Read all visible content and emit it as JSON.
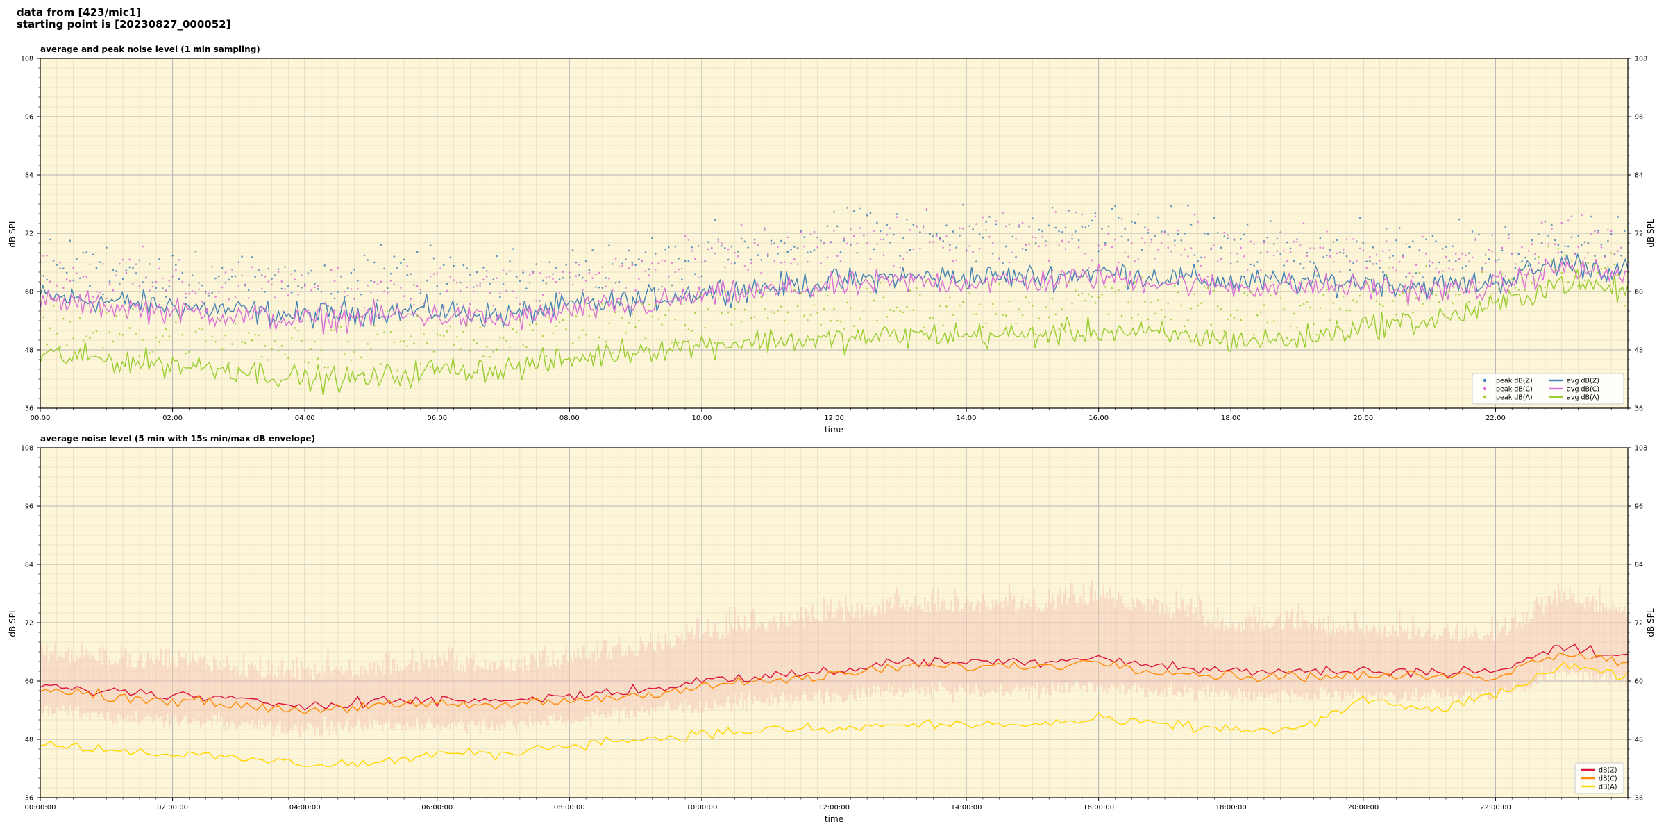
{
  "header": {
    "line1": "data from [423/mic1]",
    "line2": "starting point is [20230827_000052]"
  },
  "colors": {
    "background": "#fdf5d8",
    "z": "#4682b4",
    "c": "#da70d6",
    "a": "#9acd32",
    "z2": "#dc143c",
    "c2": "#ff8c00",
    "a2": "#ffd700",
    "envelope": "#f4c2b4"
  },
  "chart_data": [
    {
      "type": "line",
      "title": "average and peak noise level (1 min sampling)",
      "xlabel": "time",
      "ylabel": "dB SPL",
      "x_unit": "hours",
      "xlim": [
        0,
        24
      ],
      "ylim": [
        36,
        108
      ],
      "yticks": [
        36,
        48,
        60,
        72,
        84,
        96,
        108
      ],
      "xticks": [
        "00:00",
        "02:00",
        "04:00",
        "06:00",
        "08:00",
        "10:00",
        "12:00",
        "14:00",
        "16:00",
        "18:00",
        "20:00",
        "22:00"
      ],
      "grid": true,
      "legend_position": "bottom-right",
      "legend": [
        {
          "label": "peak dB(Z)",
          "kind": "marker",
          "color_key": "z"
        },
        {
          "label": "peak dB(C)",
          "kind": "marker",
          "color_key": "c"
        },
        {
          "label": "peak dB(A)",
          "kind": "marker",
          "color_key": "a"
        },
        {
          "label": "avg dB(Z)",
          "kind": "line",
          "color_key": "z"
        },
        {
          "label": "avg dB(C)",
          "kind": "line",
          "color_key": "c"
        },
        {
          "label": "avg dB(A)",
          "kind": "line",
          "color_key": "a"
        }
      ],
      "x": [
        0,
        1,
        2,
        3,
        4,
        5,
        6,
        7,
        8,
        9,
        10,
        11,
        12,
        13,
        14,
        15,
        16,
        17,
        18,
        19,
        20,
        21,
        22,
        23,
        24
      ],
      "series": [
        {
          "name": "avg dB(Z)",
          "kind": "line",
          "color_key": "z",
          "values": [
            59,
            58,
            57,
            56,
            55,
            56,
            56,
            55,
            57,
            58,
            60,
            61,
            62,
            63,
            63,
            63,
            64,
            63,
            62,
            62,
            62,
            61,
            62,
            66,
            64
          ]
        },
        {
          "name": "avg dB(C)",
          "kind": "line",
          "color_key": "c",
          "values": [
            58,
            57,
            56,
            55,
            54,
            55,
            55,
            54,
            56,
            57,
            59,
            60,
            61,
            62,
            62,
            62,
            63,
            62,
            61,
            61,
            61,
            60,
            61,
            65,
            63
          ]
        },
        {
          "name": "avg dB(A)",
          "kind": "line",
          "color_key": "a",
          "values": [
            47,
            46,
            45,
            44,
            42,
            42,
            44,
            44,
            46,
            48,
            49,
            50,
            50,
            51,
            51,
            51,
            52,
            51,
            50,
            50,
            53,
            54,
            57,
            62,
            60
          ]
        },
        {
          "name": "peak dB(Z)",
          "kind": "scatter",
          "color_key": "z",
          "values": [
            66,
            65,
            64,
            63,
            62,
            63,
            63,
            62,
            64,
            66,
            68,
            70,
            71,
            72,
            72,
            72,
            73,
            72,
            70,
            70,
            69,
            68,
            68,
            72,
            71
          ]
        },
        {
          "name": "peak dB(C)",
          "kind": "scatter",
          "color_key": "c",
          "values": [
            64,
            63,
            62,
            61,
            60,
            61,
            61,
            60,
            62,
            64,
            66,
            68,
            69,
            70,
            70,
            70,
            71,
            70,
            68,
            68,
            67,
            66,
            66,
            70,
            69
          ]
        },
        {
          "name": "peak dB(A)",
          "kind": "scatter",
          "color_key": "a",
          "values": [
            53,
            52,
            51,
            50,
            49,
            49,
            50,
            50,
            52,
            54,
            55,
            56,
            56,
            57,
            57,
            57,
            58,
            57,
            56,
            56,
            58,
            59,
            61,
            65,
            63
          ]
        }
      ]
    },
    {
      "type": "line",
      "title": "average noise level (5 min with 15s min/max dB envelope)",
      "xlabel": "time",
      "ylabel": "dB SPL",
      "x_unit": "hours",
      "xlim": [
        0,
        24
      ],
      "ylim": [
        36,
        108
      ],
      "yticks": [
        36,
        48,
        60,
        72,
        84,
        96,
        108
      ],
      "xticks": [
        "00:00:00",
        "02:00:00",
        "04:00:00",
        "06:00:00",
        "08:00:00",
        "10:00:00",
        "12:00:00",
        "14:00:00",
        "16:00:00",
        "18:00:00",
        "20:00:00",
        "22:00:00"
      ],
      "grid": true,
      "legend_position": "bottom-right",
      "legend": [
        {
          "label": "dB(Z)",
          "kind": "line",
          "color_key": "z2"
        },
        {
          "label": "dB(C)",
          "kind": "line",
          "color_key": "c2"
        },
        {
          "label": "dB(A)",
          "kind": "line",
          "color_key": "a2"
        }
      ],
      "x": [
        0,
        1,
        2,
        3,
        4,
        5,
        6,
        7,
        8,
        9,
        10,
        11,
        12,
        13,
        14,
        15,
        16,
        17,
        18,
        19,
        20,
        21,
        22,
        23,
        24
      ],
      "series": [
        {
          "name": "dB(Z)",
          "kind": "line",
          "color_key": "z2",
          "values": [
            59,
            58,
            57,
            56,
            55,
            56,
            56,
            56,
            57,
            58,
            60,
            61,
            62,
            64,
            64,
            64,
            65,
            63,
            62,
            62,
            62,
            62,
            62,
            67,
            65
          ]
        },
        {
          "name": "dB(C)",
          "kind": "line",
          "color_key": "c2",
          "values": [
            58,
            57,
            56,
            55,
            54,
            55,
            55,
            55,
            56,
            57,
            59,
            60,
            61,
            63,
            63,
            63,
            64,
            62,
            61,
            61,
            61,
            61,
            61,
            66,
            64
          ]
        },
        {
          "name": "dB(A)",
          "kind": "line",
          "color_key": "a2",
          "values": [
            47,
            46,
            45,
            44,
            43,
            43,
            45,
            45,
            47,
            48,
            49,
            50,
            50,
            51,
            51,
            51,
            52,
            51,
            50,
            50,
            56,
            54,
            57,
            63,
            61
          ]
        }
      ],
      "envelope": {
        "color_key": "envelope",
        "lower": [
          54,
          53,
          52,
          51,
          50,
          51,
          51,
          51,
          52,
          54,
          55,
          56,
          57,
          58,
          58,
          58,
          59,
          58,
          57,
          57,
          57,
          57,
          57,
          62,
          60
        ],
        "upper": [
          66,
          65,
          64,
          63,
          62,
          63,
          64,
          63,
          65,
          67,
          70,
          72,
          74,
          76,
          76,
          76,
          78,
          75,
          72,
          72,
          71,
          70,
          70,
          78,
          74
        ]
      }
    }
  ]
}
